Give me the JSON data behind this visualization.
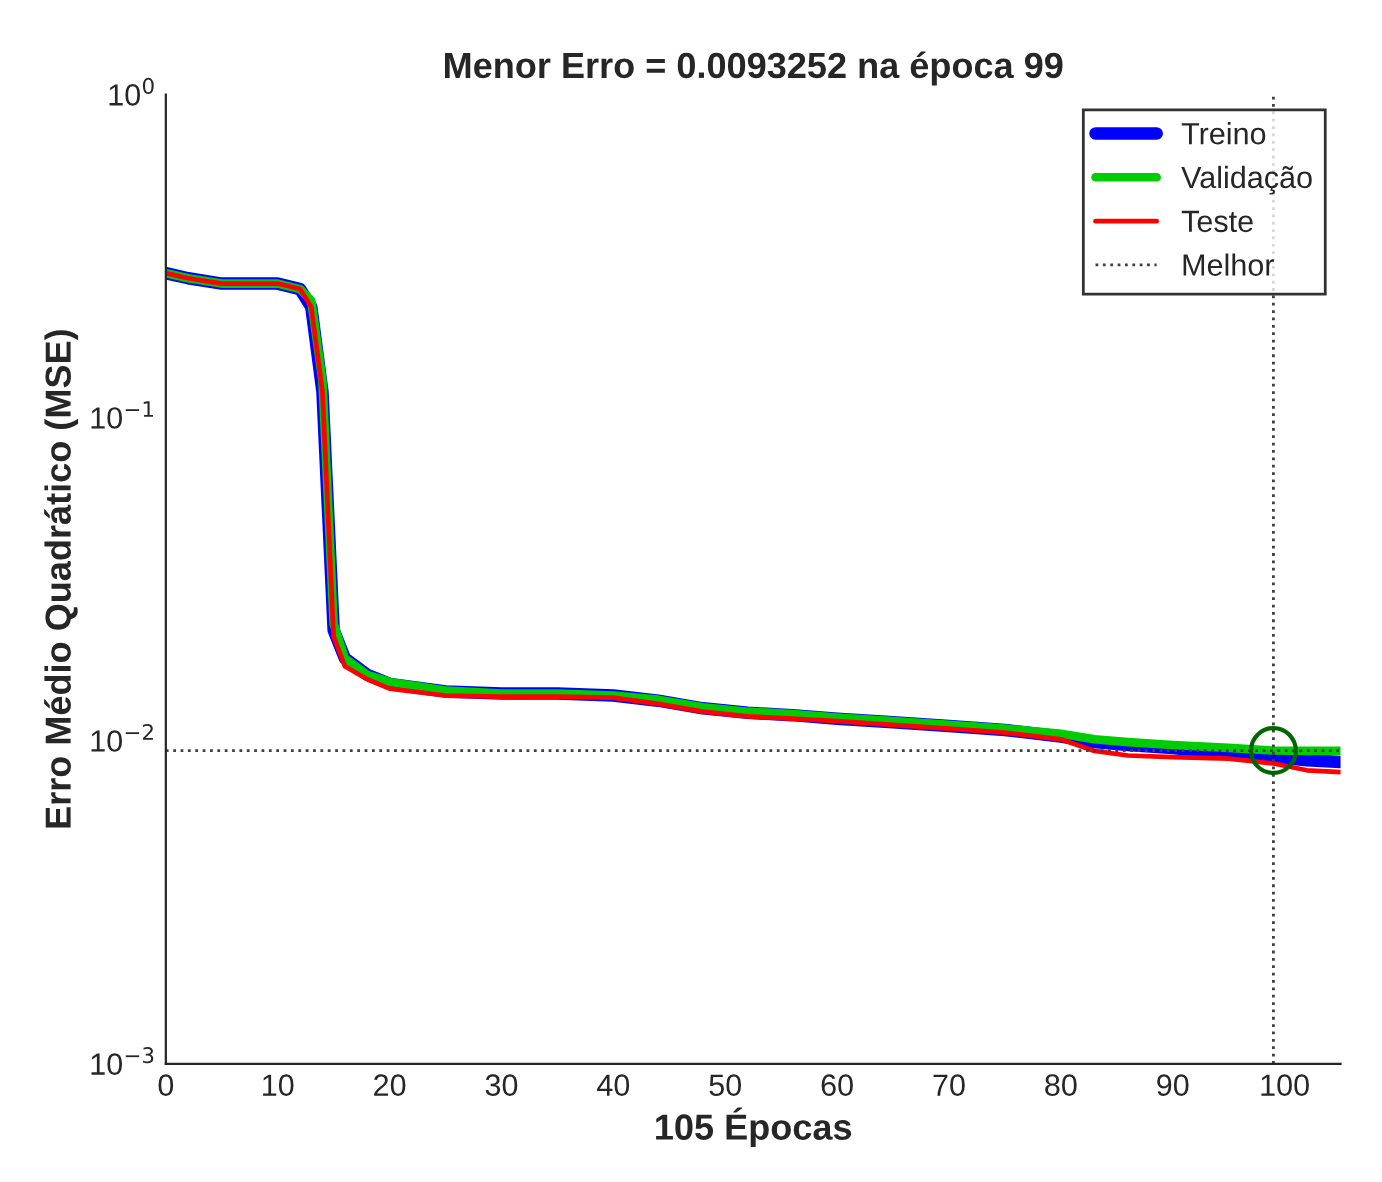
{
  "chart_data": {
    "type": "line",
    "title": "Menor Erro = 0.0093252 na época 99",
    "xlabel": "105 Épocas",
    "ylabel": "Erro Médio Quadrático (MSE)",
    "x": [
      0,
      2,
      5,
      8,
      10,
      12,
      13,
      14,
      15,
      16,
      18,
      20,
      25,
      30,
      35,
      40,
      44,
      48,
      52,
      56,
      60,
      65,
      70,
      75,
      80,
      83,
      86,
      90,
      95,
      99,
      102,
      105
    ],
    "series": [
      {
        "name": "Treino",
        "color": "#0000ff",
        "values": [
          0.28,
          0.27,
          0.26,
          0.26,
          0.26,
          0.25,
          0.22,
          0.12,
          0.022,
          0.018,
          0.016,
          0.015,
          0.0142,
          0.014,
          0.014,
          0.0138,
          0.0133,
          0.0126,
          0.0122,
          0.012,
          0.0117,
          0.0114,
          0.0111,
          0.0108,
          0.0103,
          0.0099,
          0.0097,
          0.0095,
          0.0091,
          0.0089,
          0.0087,
          0.0086
        ]
      },
      {
        "name": "Validação",
        "color": "#00cc00",
        "values": [
          0.28,
          0.27,
          0.26,
          0.26,
          0.26,
          0.25,
          0.23,
          0.13,
          0.023,
          0.018,
          0.016,
          0.0152,
          0.0143,
          0.014,
          0.014,
          0.0138,
          0.0134,
          0.0127,
          0.0123,
          0.0121,
          0.0118,
          0.0115,
          0.0112,
          0.0109,
          0.0105,
          0.0101,
          0.0099,
          0.0097,
          0.0095,
          0.0093252,
          0.0093,
          0.0093
        ]
      },
      {
        "name": "Teste",
        "color": "#ff0000",
        "values": [
          0.28,
          0.27,
          0.26,
          0.26,
          0.26,
          0.25,
          0.22,
          0.12,
          0.021,
          0.017,
          0.0155,
          0.0145,
          0.0138,
          0.0137,
          0.0137,
          0.0136,
          0.013,
          0.0123,
          0.0119,
          0.0117,
          0.0115,
          0.0112,
          0.0109,
          0.0106,
          0.0101,
          0.0093,
          0.009,
          0.0089,
          0.0088,
          0.0085,
          0.0081,
          0.008
        ]
      },
      {
        "type": "scatter",
        "marker": "circle",
        "color": "#006600",
        "x": [
          99
        ],
        "values": [
          0.0093252
        ]
      }
    ],
    "ref_lines": [
      {
        "axis": "x",
        "value": 99,
        "label": "Melhor",
        "line_style": "dotted",
        "color": "#404040"
      },
      {
        "axis": "y",
        "value": 0.0093252,
        "line_style": "dotted",
        "color": "#404040"
      }
    ],
    "log": "y",
    "xlim": [
      0,
      105
    ],
    "xticks": [
      0,
      10,
      20,
      30,
      40,
      50,
      60,
      70,
      80,
      90,
      100
    ],
    "ylim": [
      0.001,
      1
    ],
    "yticks": [
      {
        "value": 0.001,
        "label": "10$^{−3}$"
      },
      {
        "value": 0.01,
        "label": "10$^{−2}$"
      },
      {
        "value": 0.1,
        "label": "10$^{−1}$"
      },
      {
        "value": 1,
        "label": "10$^{0}$"
      }
    ],
    "legend": "top right",
    "grid": false,
    "line_style": "solid"
  }
}
